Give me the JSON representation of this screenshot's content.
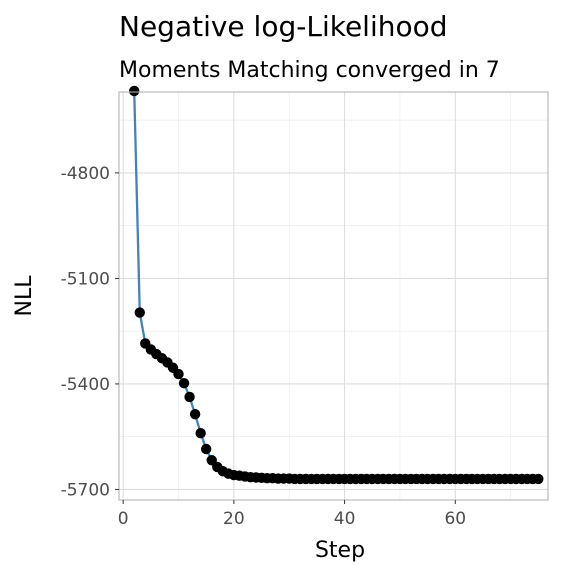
{
  "chart_data": {
    "type": "line",
    "title": "Negative log-Likelihood",
    "subtitle": "Moments Matching converged in 7",
    "xlabel": "Step",
    "ylabel": "NLL",
    "xlim": [
      -0.75,
      76.75
    ],
    "ylim": [
      -5730,
      -4570
    ],
    "x_ticks": [
      0,
      20,
      40,
      60
    ],
    "x_tick_labels": [
      "0",
      "20",
      "40",
      "60"
    ],
    "y_ticks": [
      -4800,
      -5100,
      -5400,
      -5700
    ],
    "y_tick_labels": [
      "-4800",
      "-5100",
      "-5400",
      "-5700"
    ],
    "grid": true,
    "legend": "none",
    "series": [
      {
        "line_color": "#4682b4",
        "point_color": "#000000",
        "x": [
          2,
          3,
          4,
          5,
          6,
          7,
          8,
          9,
          10,
          11,
          12,
          13,
          14,
          15,
          16,
          17,
          18,
          19,
          20,
          21,
          22,
          23,
          24,
          25,
          26,
          27,
          28,
          29,
          30,
          31,
          32,
          33,
          34,
          35,
          36,
          37,
          38,
          39,
          40,
          41,
          42,
          43,
          44,
          45,
          46,
          47,
          48,
          49,
          50,
          51,
          52,
          53,
          54,
          55,
          56,
          57,
          58,
          59,
          60,
          61,
          62,
          63,
          64,
          65,
          66,
          67,
          68,
          69,
          70,
          71,
          72,
          73,
          74,
          75
        ],
        "y": [
          -4567,
          -5197,
          -5285,
          -5302,
          -5315,
          -5327,
          -5339,
          -5354,
          -5372,
          -5398,
          -5437,
          -5486,
          -5540,
          -5585,
          -5617,
          -5636,
          -5648,
          -5655,
          -5659,
          -5661,
          -5663,
          -5665,
          -5666,
          -5667,
          -5668,
          -5668,
          -5669,
          -5669,
          -5669,
          -5670,
          -5670,
          -5670,
          -5670,
          -5670,
          -5670,
          -5670,
          -5670,
          -5670,
          -5670,
          -5670,
          -5670,
          -5670,
          -5670,
          -5670,
          -5670,
          -5670,
          -5670,
          -5670,
          -5670,
          -5670,
          -5670,
          -5670,
          -5670,
          -5670,
          -5670,
          -5670,
          -5670,
          -5670,
          -5670,
          -5670,
          -5670,
          -5670,
          -5670,
          -5670,
          -5670,
          -5670,
          -5670,
          -5670,
          -5670,
          -5670,
          -5670,
          -5670,
          -5670,
          -5670
        ]
      }
    ]
  }
}
